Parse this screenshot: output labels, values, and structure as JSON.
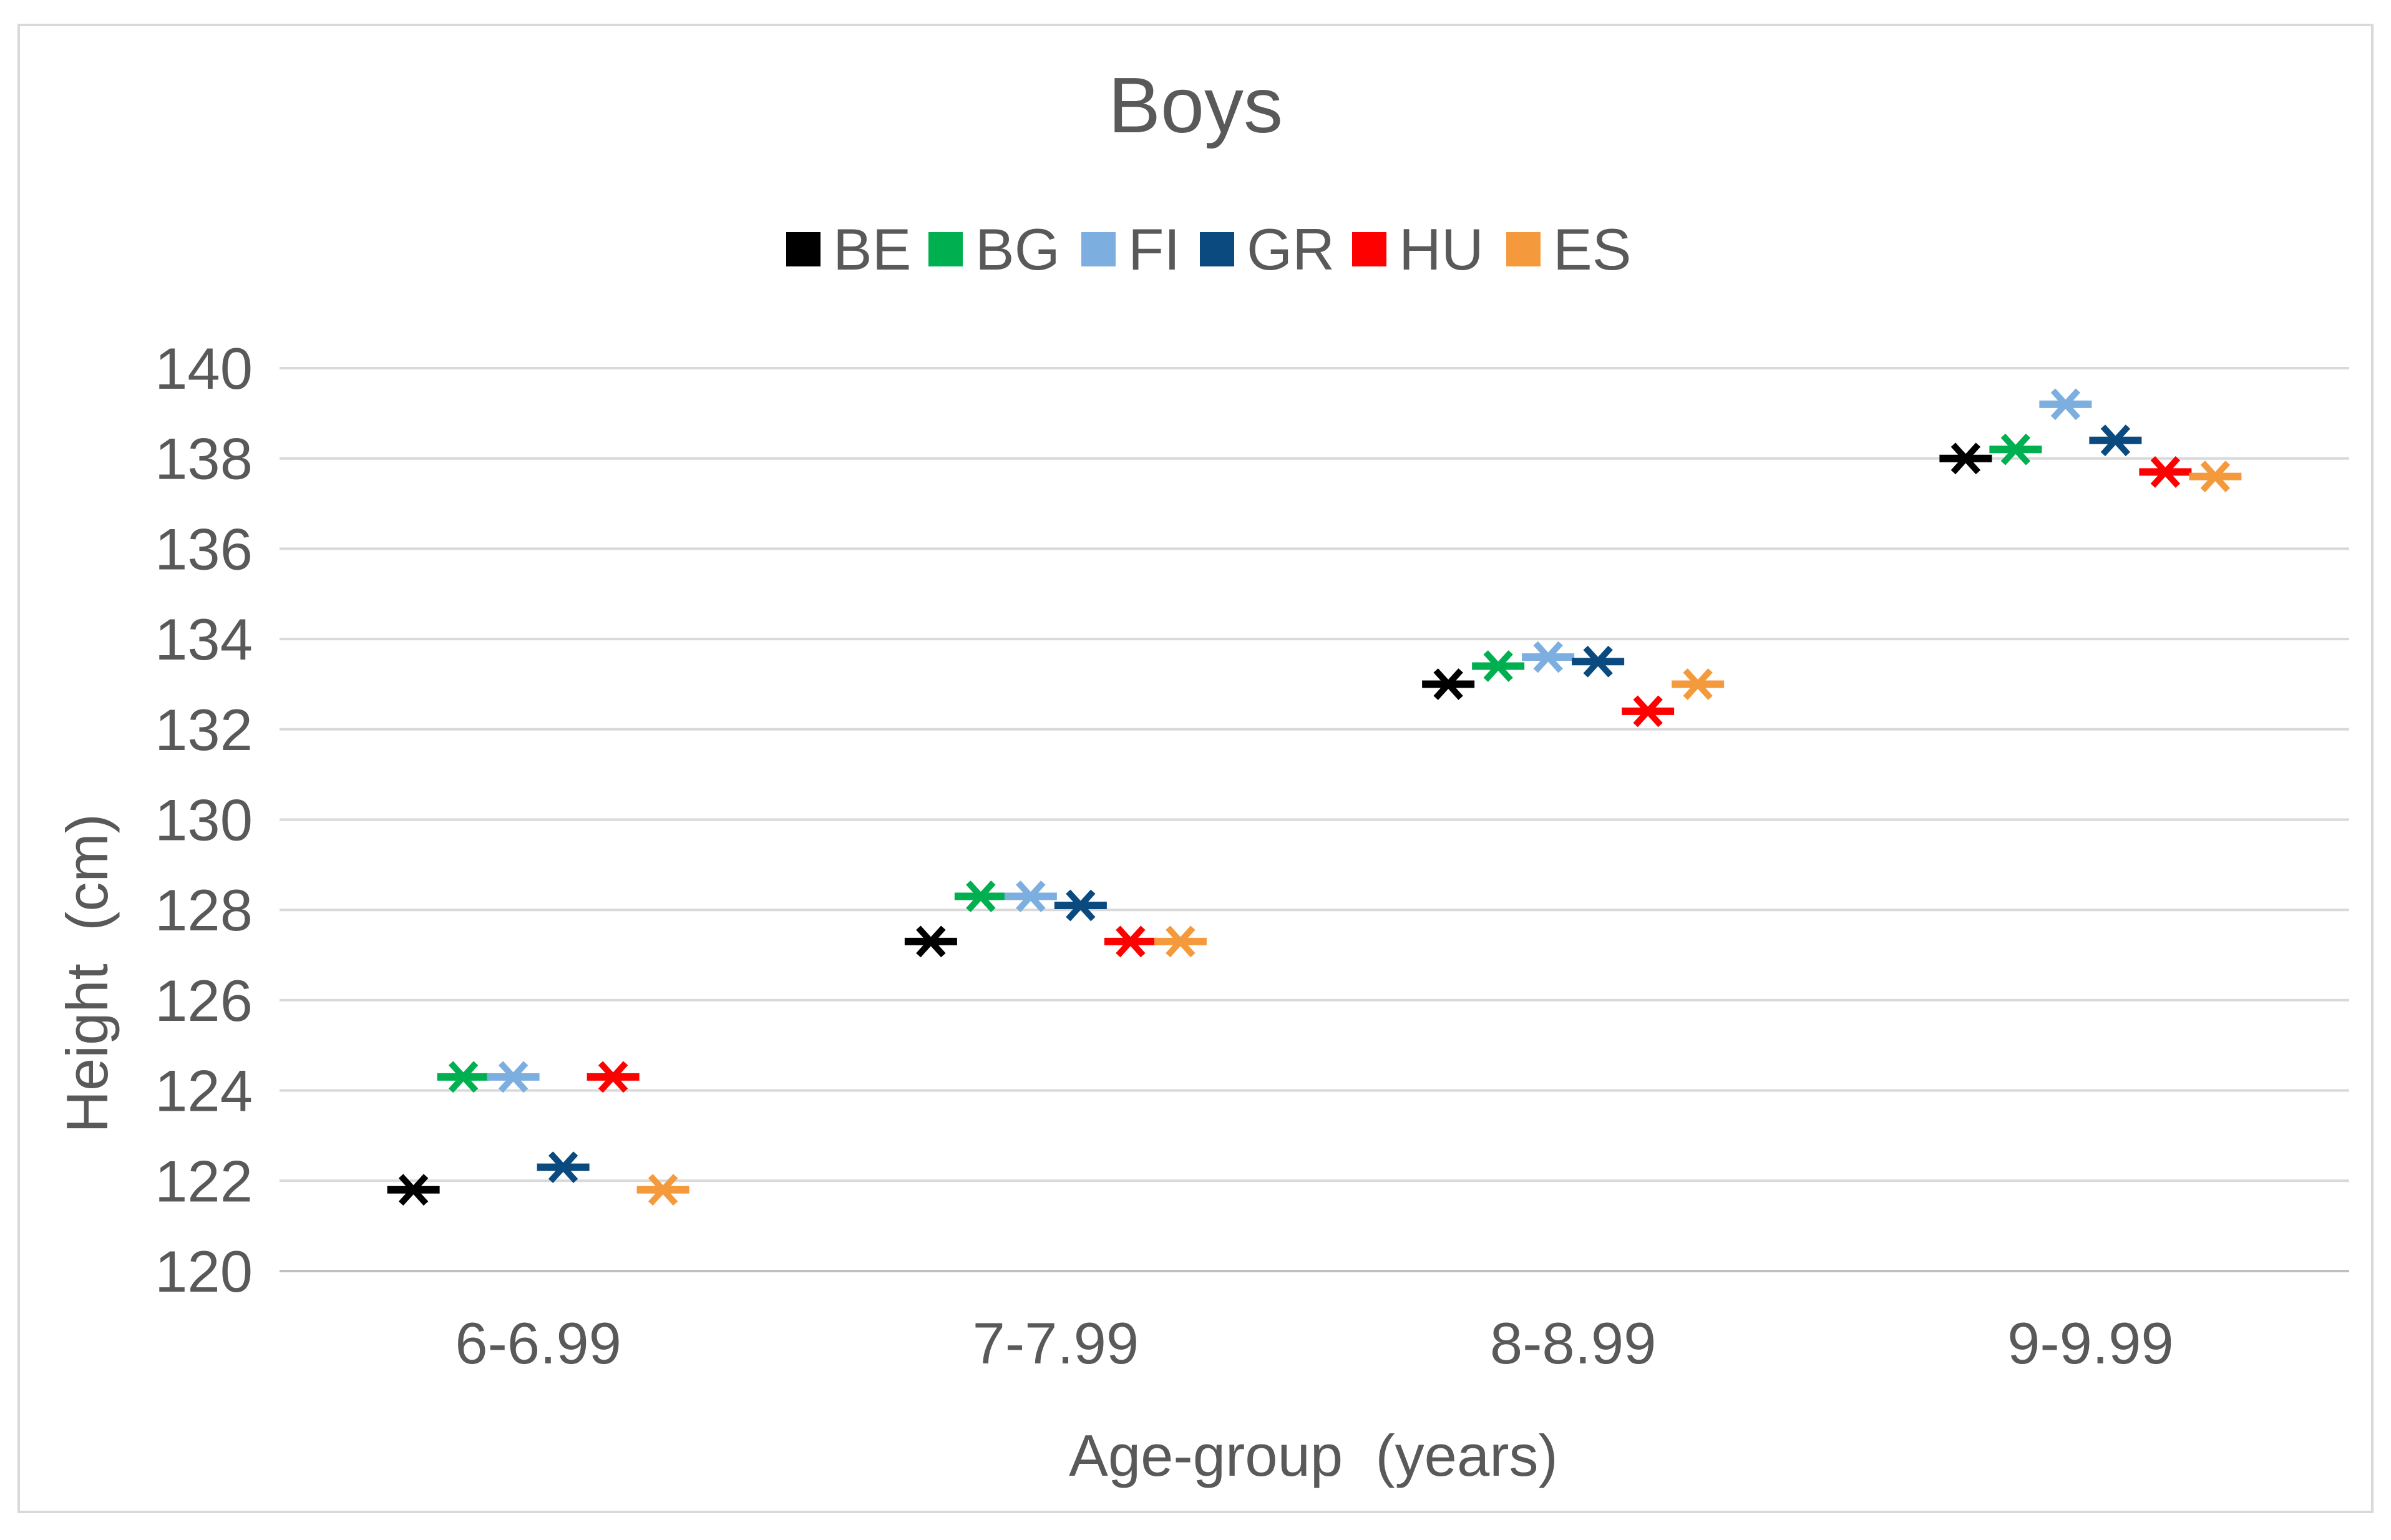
{
  "chart_data": {
    "type": "scatter",
    "title": "Boys",
    "xlabel": "Age-group  (years)",
    "ylabel": "Height  (cm)",
    "ylim": [
      120,
      140
    ],
    "yticks": [
      120,
      122,
      124,
      126,
      128,
      130,
      132,
      134,
      136,
      138,
      140
    ],
    "grid": true,
    "legend_position": "top-center",
    "marker": "star-dash",
    "categories": [
      "6-6.99",
      "7-7.99",
      "8-8.99",
      "9-9.99"
    ],
    "series": [
      {
        "name": "BE",
        "color": "#000000",
        "values": [
          121.8,
          127.3,
          133.0,
          138.0
        ]
      },
      {
        "name": "BG",
        "color": "#00b050",
        "values": [
          124.3,
          128.3,
          133.4,
          138.2
        ]
      },
      {
        "name": "FI",
        "color": "#7cafe0",
        "values": [
          124.3,
          128.3,
          133.6,
          139.2
        ]
      },
      {
        "name": "GR",
        "color": "#0a4a7f",
        "values": [
          122.3,
          128.1,
          133.5,
          138.4
        ]
      },
      {
        "name": "HU",
        "color": "#ff0000",
        "values": [
          124.3,
          127.3,
          132.4,
          137.7
        ]
      },
      {
        "name": "ES",
        "color": "#f59a3c",
        "values": [
          121.8,
          127.3,
          133.0,
          137.6
        ]
      }
    ]
  }
}
